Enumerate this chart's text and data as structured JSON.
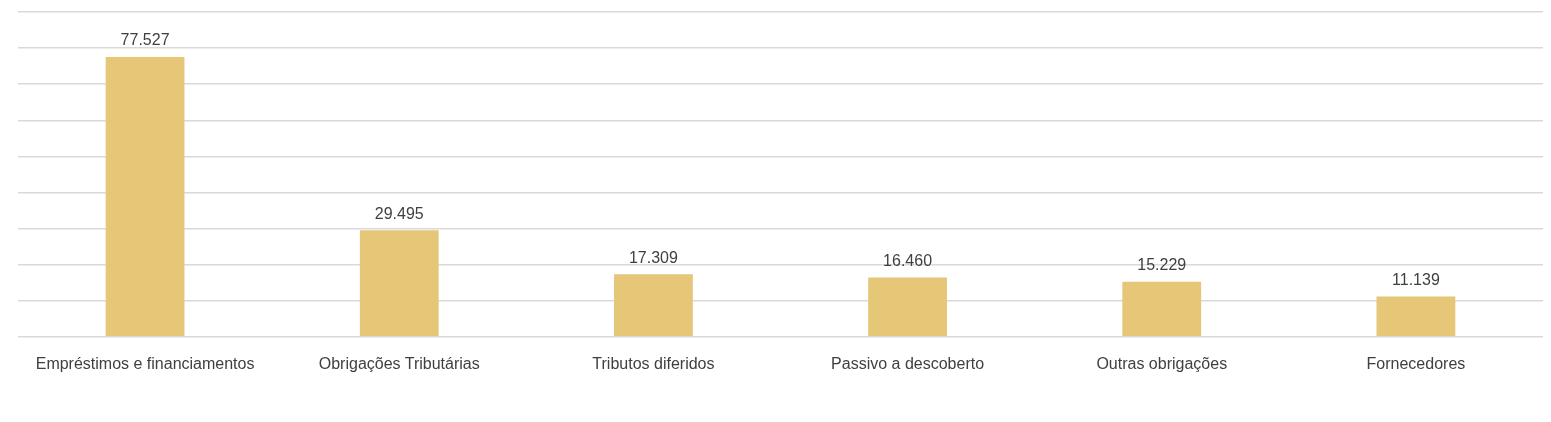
{
  "chart_data": {
    "type": "bar",
    "categories": [
      "Empréstimos e financiamentos",
      "Obrigações Tributárias",
      "Tributos diferidos",
      "Passivo a descoberto",
      "Outras obrigações",
      "Fornecedores"
    ],
    "values": [
      77527,
      29495,
      17309,
      16460,
      15229,
      11139
    ],
    "value_labels": [
      "77.527",
      "29.495",
      "17.309",
      "16.460",
      "15.229",
      "11.139"
    ],
    "color": "#e6c677",
    "ylim": [
      0,
      90000
    ],
    "yticks": [
      {
        "value": 0,
        "label": null
      },
      {
        "value": 10000,
        "label": null
      },
      {
        "value": 20000,
        "label": null
      },
      {
        "value": 30000,
        "label": null
      },
      {
        "value": 40000,
        "label": null
      },
      {
        "value": 50000,
        "label": null
      },
      {
        "value": 60000,
        "label": null
      },
      {
        "value": 70000,
        "label": null
      },
      {
        "value": 80000,
        "label": null
      },
      {
        "value": 90000,
        "label": null
      }
    ],
    "grid": "y",
    "tick_labels": "x",
    "legend": false
  }
}
